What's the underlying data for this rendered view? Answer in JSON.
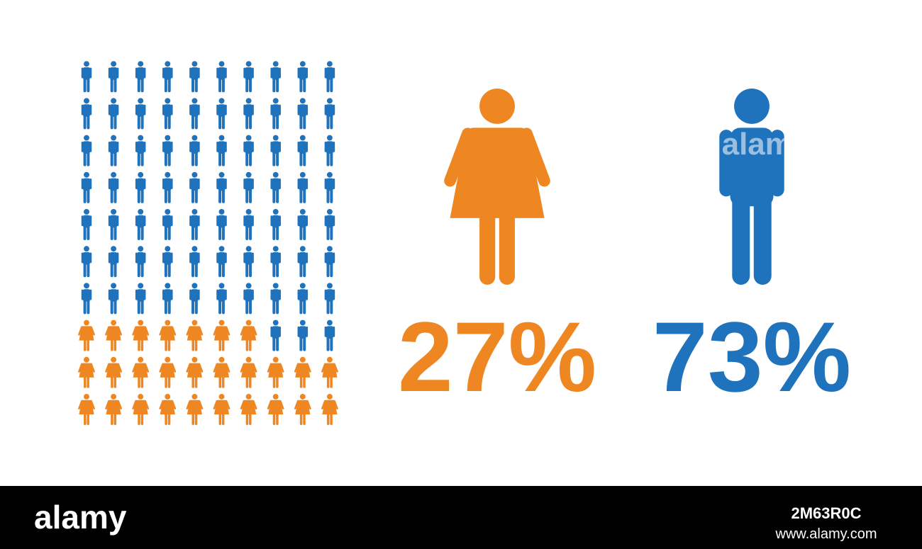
{
  "chart_data": {
    "type": "pictogram",
    "series": [
      {
        "icon": "woman",
        "color": "#ee8722",
        "values": [
          27
        ],
        "value_labels": [
          "27%"
        ]
      },
      {
        "icon": "man",
        "color": "#1f72bc",
        "values": [
          73
        ],
        "value_labels": [
          "73%"
        ]
      }
    ],
    "watermark": "alamy"
  },
  "footer": {
    "brand": "alamy",
    "image_id": "2M63R0C",
    "url": "www.alamy.com"
  }
}
